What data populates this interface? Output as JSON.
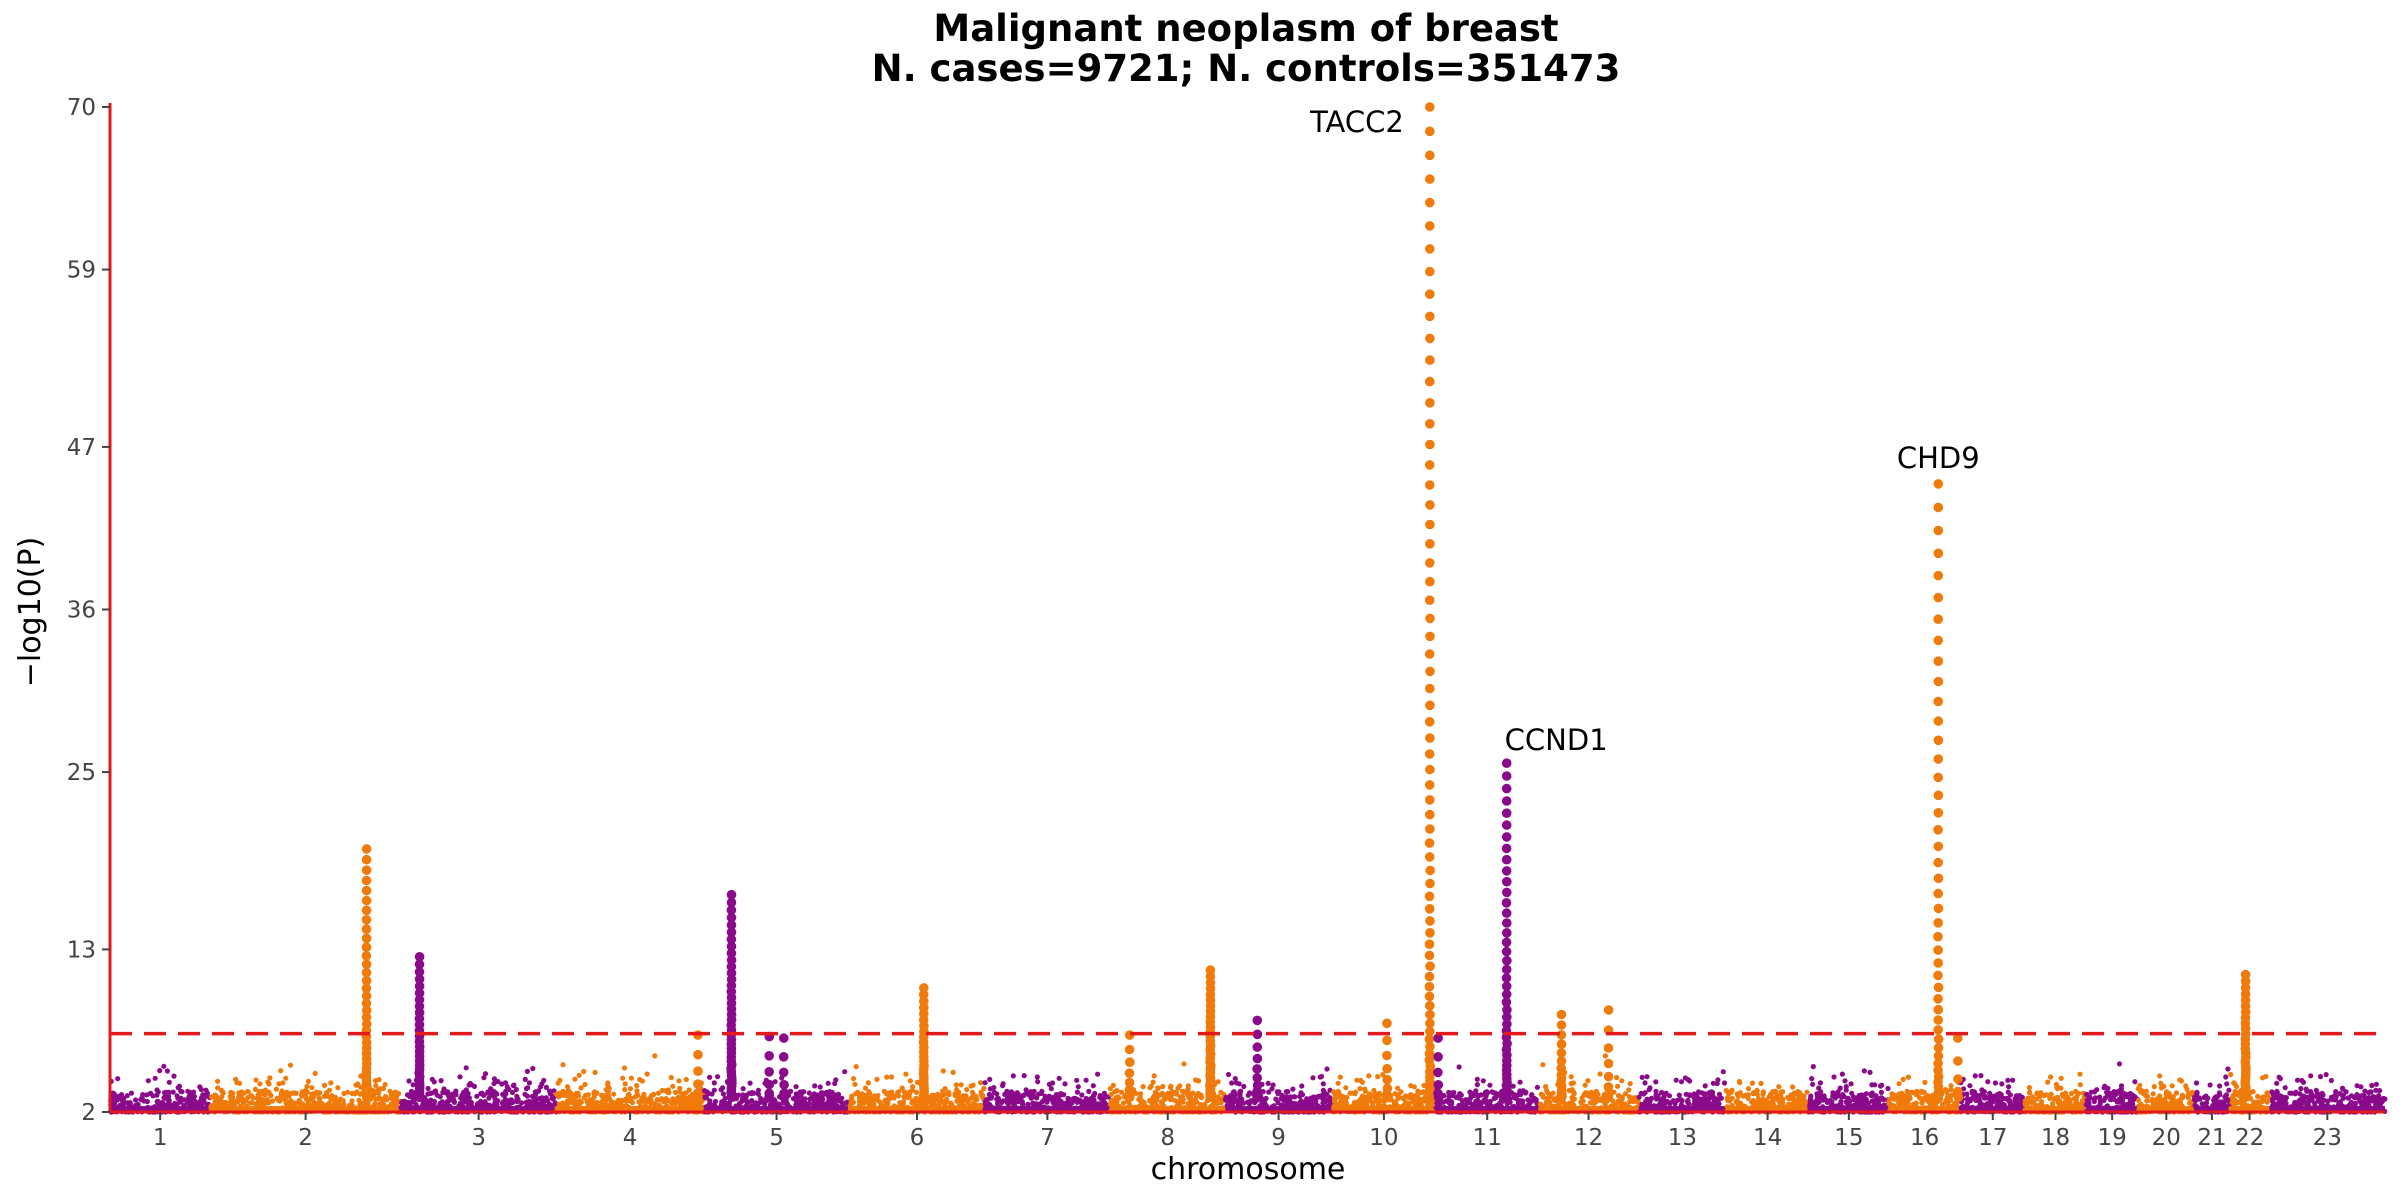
{
  "chart_data": {
    "type": "scatter",
    "subtype": "manhattan",
    "title": "Malignant neoplasm of breast",
    "subtitle": "N. cases=9721; N. controls=351473",
    "xlabel": "chromosome",
    "ylabel": "−log10(P)",
    "yticks": [
      2,
      13,
      25,
      36,
      47,
      59,
      70
    ],
    "ylim": [
      2,
      70
    ],
    "significance_threshold": 7.3,
    "colors": {
      "odd": "#8b0a8b",
      "even": "#f07a0a",
      "threshold": "#e31a1c",
      "axis": "#e31a1c"
    },
    "chromosomes": [
      {
        "name": "1",
        "start": 0,
        "end": 1,
        "color": "odd"
      },
      {
        "name": "2",
        "start": 1,
        "end": 2.9,
        "color": "even"
      },
      {
        "name": "3",
        "start": 2.9,
        "end": 4.45,
        "color": "odd"
      },
      {
        "name": "4",
        "start": 4.45,
        "end": 5.92,
        "color": "even"
      },
      {
        "name": "5",
        "start": 5.92,
        "end": 7.37,
        "color": "odd"
      },
      {
        "name": "6",
        "start": 7.37,
        "end": 8.72,
        "color": "even"
      },
      {
        "name": "7",
        "start": 8.72,
        "end": 9.97,
        "color": "odd"
      },
      {
        "name": "8",
        "start": 9.97,
        "end": 11.12,
        "color": "even"
      },
      {
        "name": "9",
        "start": 11.12,
        "end": 12.18,
        "color": "odd"
      },
      {
        "name": "10",
        "start": 12.18,
        "end": 13.22,
        "color": "even"
      },
      {
        "name": "11",
        "start": 13.22,
        "end": 14.24,
        "color": "odd"
      },
      {
        "name": "12",
        "start": 14.24,
        "end": 15.24,
        "color": "even"
      },
      {
        "name": "13",
        "start": 15.24,
        "end": 16.11,
        "color": "odd"
      },
      {
        "name": "14",
        "start": 16.11,
        "end": 16.94,
        "color": "even"
      },
      {
        "name": "15",
        "start": 16.94,
        "end": 17.73,
        "color": "odd"
      },
      {
        "name": "16",
        "start": 17.73,
        "end": 18.45,
        "color": "even"
      },
      {
        "name": "17",
        "start": 18.45,
        "end": 19.09,
        "color": "odd"
      },
      {
        "name": "18",
        "start": 19.09,
        "end": 19.7,
        "color": "even"
      },
      {
        "name": "19",
        "start": 19.7,
        "end": 20.22,
        "color": "odd"
      },
      {
        "name": "20",
        "start": 20.22,
        "end": 20.78,
        "color": "even"
      },
      {
        "name": "21",
        "start": 20.78,
        "end": 21.13,
        "color": "odd"
      },
      {
        "name": "22",
        "start": 21.13,
        "end": 21.53,
        "color": "even"
      },
      {
        "name": "23",
        "start": 21.53,
        "end": 22.68,
        "color": "odd"
      }
    ],
    "peaks": [
      {
        "chr": "2",
        "pos": 0.82,
        "max": 19.8,
        "n": 40
      },
      {
        "chr": "3",
        "pos": 0.12,
        "max": 12.5,
        "n": 32
      },
      {
        "chr": "4",
        "pos": 0.96,
        "max": 7.2,
        "n": 6
      },
      {
        "chr": "5",
        "pos": 0.19,
        "max": 16.7,
        "n": 45
      },
      {
        "chr": "5",
        "pos": 0.45,
        "max": 7.1,
        "n": 6
      },
      {
        "chr": "5",
        "pos": 0.55,
        "max": 7.0,
        "n": 6
      },
      {
        "chr": "6",
        "pos": 0.55,
        "max": 10.4,
        "n": 28
      },
      {
        "chr": "8",
        "pos": 0.17,
        "max": 7.2,
        "n": 8
      },
      {
        "chr": "8",
        "pos": 0.87,
        "max": 11.6,
        "n": 35
      },
      {
        "chr": "9",
        "pos": 0.3,
        "max": 8.2,
        "n": 10
      },
      {
        "chr": "10",
        "pos": 0.53,
        "max": 8.0,
        "n": 8
      },
      {
        "chr": "10",
        "pos": 0.94,
        "max": 70.0,
        "n": 70
      },
      {
        "chr": "11",
        "pos": 0.02,
        "max": 7.0,
        "n": 6
      },
      {
        "chr": "11",
        "pos": 0.69,
        "max": 25.6,
        "n": 45
      },
      {
        "chr": "12",
        "pos": 0.23,
        "max": 8.6,
        "n": 14
      },
      {
        "chr": "12",
        "pos": 0.7,
        "max": 8.9,
        "n": 8
      },
      {
        "chr": "16",
        "pos": 0.69,
        "max": 44.5,
        "n": 45
      },
      {
        "chr": "16",
        "pos": 0.96,
        "max": 7.0,
        "n": 5
      },
      {
        "chr": "22",
        "pos": 0.4,
        "max": 11.3,
        "n": 32
      }
    ],
    "annotations": [
      {
        "label": "TACC2",
        "chr": "10",
        "pos": 0.94,
        "y": 70.0,
        "anchor": "end"
      },
      {
        "label": "CCND1",
        "chr": "11",
        "pos": 0.69,
        "y": 25.6,
        "anchor": "start"
      },
      {
        "label": "CHD9",
        "chr": "16",
        "pos": 0.69,
        "y": 44.5,
        "anchor": "middle"
      }
    ]
  }
}
